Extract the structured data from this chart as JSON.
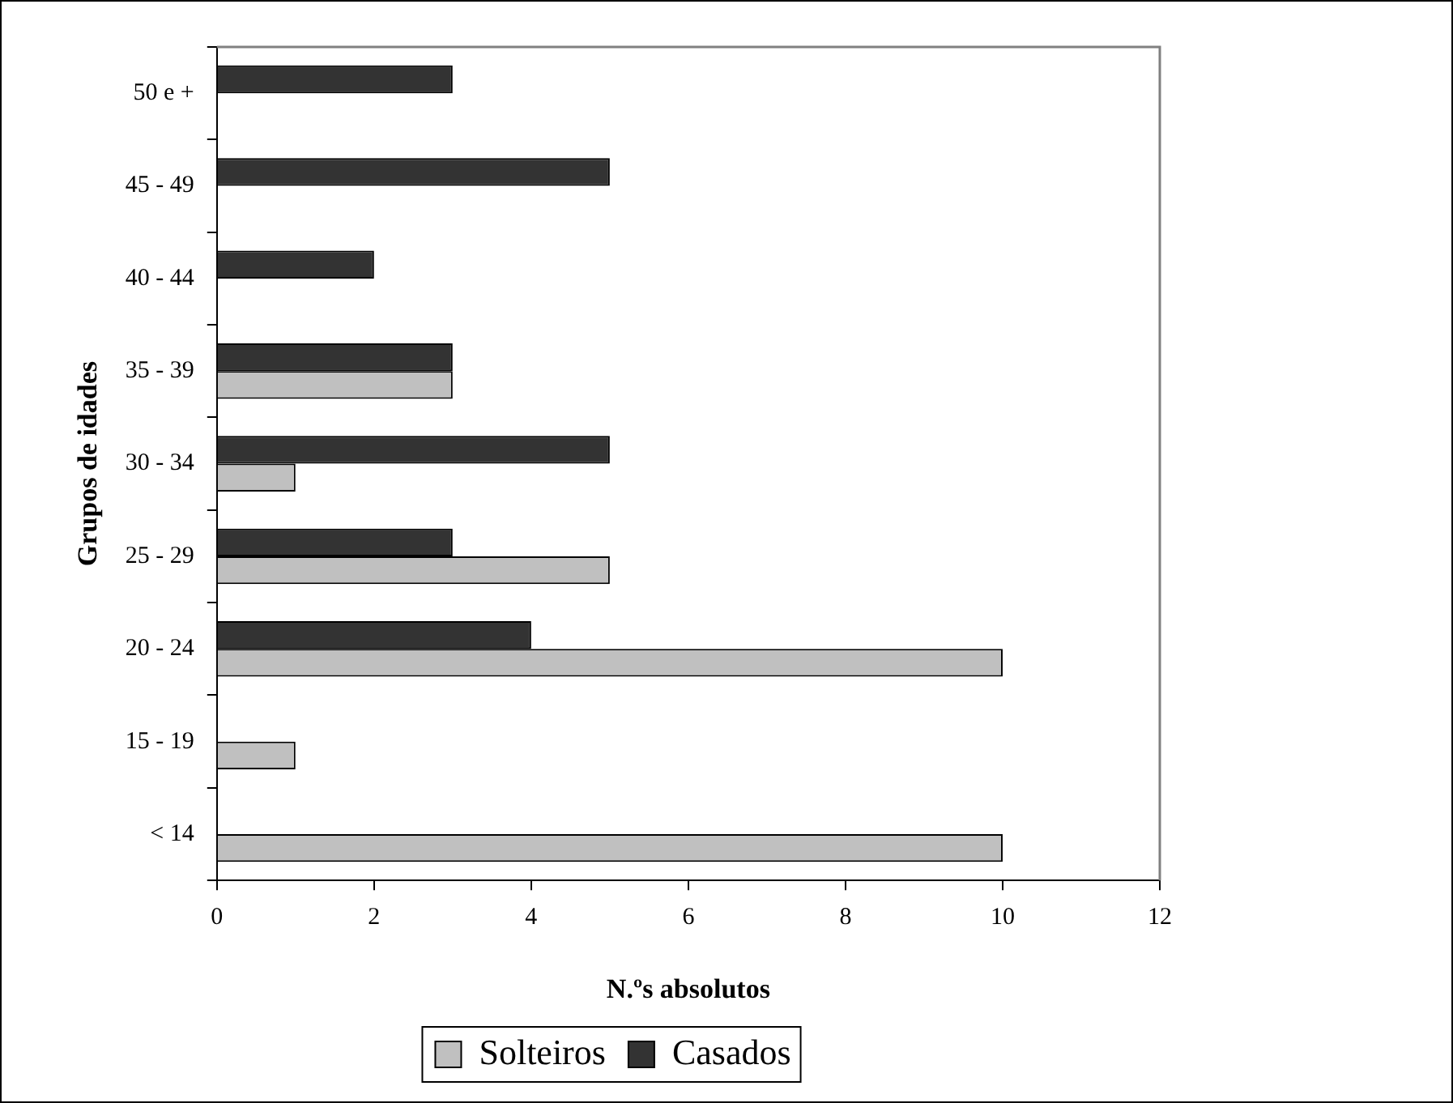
{
  "chart_data": {
    "type": "bar",
    "orientation": "horizontal",
    "xlabel": "N.ºs absolutos",
    "ylabel": "Grupos de idades",
    "categories": [
      "50 e +",
      "45 - 49",
      "40 - 44",
      "35 - 39",
      "30 - 34",
      "25 - 29",
      "20 - 24",
      "15 - 19",
      "< 14"
    ],
    "series": [
      {
        "name": "Solteiros",
        "color": "#c0c0c0",
        "values": [
          null,
          null,
          null,
          3,
          1,
          5,
          10,
          1,
          10
        ]
      },
      {
        "name": "Casados",
        "color": "#333333",
        "values": [
          3,
          5,
          2,
          3,
          5,
          3,
          4,
          null,
          null
        ]
      }
    ],
    "xlim": [
      0,
      12
    ],
    "xticks": [
      0,
      2,
      4,
      6,
      8,
      10,
      12
    ],
    "grid": false,
    "legend": "bottom"
  }
}
